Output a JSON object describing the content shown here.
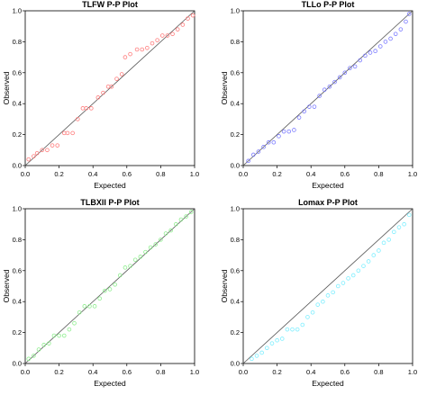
{
  "chart_data": [
    {
      "type": "scatter",
      "title": "TLFW P-P Plot",
      "xlabel": "Expected",
      "ylabel": "Observed",
      "xlim": [
        0,
        1
      ],
      "ylim": [
        0,
        1
      ],
      "xticks": [
        "0.0",
        "0.2",
        "0.4",
        "0.6",
        "0.8",
        "1.0"
      ],
      "yticks": [
        "0.0",
        "0.2",
        "0.4",
        "0.6",
        "0.8",
        "1.0"
      ],
      "reference_line": [
        [
          0,
          0
        ],
        [
          1,
          1
        ]
      ],
      "point_color": "#ff7f7f",
      "x": [
        0.02,
        0.05,
        0.07,
        0.1,
        0.13,
        0.16,
        0.19,
        0.23,
        0.25,
        0.28,
        0.31,
        0.34,
        0.36,
        0.39,
        0.43,
        0.46,
        0.49,
        0.51,
        0.54,
        0.57,
        0.59,
        0.62,
        0.66,
        0.69,
        0.72,
        0.75,
        0.78,
        0.81,
        0.84,
        0.87,
        0.9,
        0.93,
        0.96,
        0.99
      ],
      "y": [
        0.04,
        0.06,
        0.08,
        0.1,
        0.1,
        0.13,
        0.13,
        0.21,
        0.21,
        0.21,
        0.3,
        0.37,
        0.37,
        0.37,
        0.44,
        0.47,
        0.51,
        0.51,
        0.56,
        0.59,
        0.7,
        0.72,
        0.75,
        0.75,
        0.76,
        0.79,
        0.81,
        0.84,
        0.84,
        0.85,
        0.88,
        0.91,
        0.95,
        0.97
      ]
    },
    {
      "type": "scatter",
      "title": "TLLo P-P Plot",
      "xlabel": "Expected",
      "ylabel": "Observed",
      "xlim": [
        0,
        1
      ],
      "ylim": [
        0,
        1
      ],
      "xticks": [
        "0.0",
        "0.2",
        "0.4",
        "0.6",
        "0.8",
        "1.0"
      ],
      "yticks": [
        "0.0",
        "0.2",
        "0.4",
        "0.6",
        "0.8",
        "1.0"
      ],
      "reference_line": [
        [
          0,
          0
        ],
        [
          1,
          1
        ]
      ],
      "point_color": "#7f7fff",
      "x": [
        0.03,
        0.06,
        0.09,
        0.12,
        0.15,
        0.18,
        0.21,
        0.24,
        0.27,
        0.3,
        0.33,
        0.36,
        0.39,
        0.42,
        0.45,
        0.48,
        0.51,
        0.54,
        0.57,
        0.6,
        0.63,
        0.66,
        0.69,
        0.72,
        0.75,
        0.78,
        0.81,
        0.84,
        0.87,
        0.9,
        0.93,
        0.96,
        0.98
      ],
      "y": [
        0.03,
        0.07,
        0.09,
        0.12,
        0.15,
        0.15,
        0.19,
        0.22,
        0.22,
        0.23,
        0.31,
        0.35,
        0.38,
        0.38,
        0.45,
        0.49,
        0.51,
        0.54,
        0.57,
        0.6,
        0.63,
        0.64,
        0.68,
        0.71,
        0.73,
        0.74,
        0.77,
        0.8,
        0.82,
        0.85,
        0.88,
        0.93,
        0.98
      ]
    },
    {
      "type": "scatter",
      "title": "TLBXII P-P Plot",
      "xlabel": "Expected",
      "ylabel": "Observed",
      "xlim": [
        0,
        1
      ],
      "ylim": [
        0,
        1
      ],
      "xticks": [
        "0.0",
        "0.2",
        "0.4",
        "0.6",
        "0.8",
        "1.0"
      ],
      "yticks": [
        "0.0",
        "0.2",
        "0.4",
        "0.6",
        "0.8",
        "1.0"
      ],
      "reference_line": [
        [
          0,
          0
        ],
        [
          1,
          1
        ]
      ],
      "point_color": "#90ee90",
      "x": [
        0.02,
        0.05,
        0.08,
        0.11,
        0.14,
        0.17,
        0.2,
        0.23,
        0.26,
        0.29,
        0.32,
        0.35,
        0.38,
        0.41,
        0.44,
        0.47,
        0.5,
        0.53,
        0.56,
        0.59,
        0.62,
        0.65,
        0.68,
        0.71,
        0.74,
        0.77,
        0.8,
        0.83,
        0.86,
        0.89,
        0.92,
        0.95,
        0.98
      ],
      "y": [
        0.03,
        0.05,
        0.09,
        0.12,
        0.13,
        0.18,
        0.18,
        0.18,
        0.22,
        0.26,
        0.33,
        0.37,
        0.37,
        0.37,
        0.42,
        0.47,
        0.48,
        0.51,
        0.57,
        0.62,
        0.63,
        0.67,
        0.69,
        0.72,
        0.75,
        0.77,
        0.8,
        0.84,
        0.86,
        0.9,
        0.93,
        0.95,
        0.98
      ]
    },
    {
      "type": "scatter",
      "title": "Lomax P-P Plot",
      "xlabel": "Expected",
      "ylabel": "Observed",
      "xlim": [
        0,
        1
      ],
      "ylim": [
        0,
        1
      ],
      "xticks": [
        "0.0",
        "0.2",
        "0.4",
        "0.6",
        "0.8",
        "1.0"
      ],
      "yticks": [
        "0.0",
        "0.2",
        "0.4",
        "0.6",
        "0.8",
        "1.0"
      ],
      "reference_line": [
        [
          0,
          0
        ],
        [
          1,
          1
        ]
      ],
      "point_color": "#7fefff",
      "x": [
        0.05,
        0.08,
        0.11,
        0.14,
        0.17,
        0.2,
        0.23,
        0.26,
        0.29,
        0.32,
        0.35,
        0.38,
        0.41,
        0.44,
        0.47,
        0.5,
        0.53,
        0.56,
        0.59,
        0.62,
        0.65,
        0.68,
        0.71,
        0.74,
        0.77,
        0.8,
        0.83,
        0.86,
        0.89,
        0.92,
        0.95,
        0.98
      ],
      "y": [
        0.03,
        0.05,
        0.07,
        0.1,
        0.13,
        0.15,
        0.16,
        0.22,
        0.22,
        0.22,
        0.25,
        0.3,
        0.33,
        0.38,
        0.4,
        0.44,
        0.46,
        0.5,
        0.52,
        0.55,
        0.57,
        0.6,
        0.63,
        0.66,
        0.7,
        0.73,
        0.78,
        0.8,
        0.85,
        0.88,
        0.9,
        0.96
      ]
    }
  ]
}
